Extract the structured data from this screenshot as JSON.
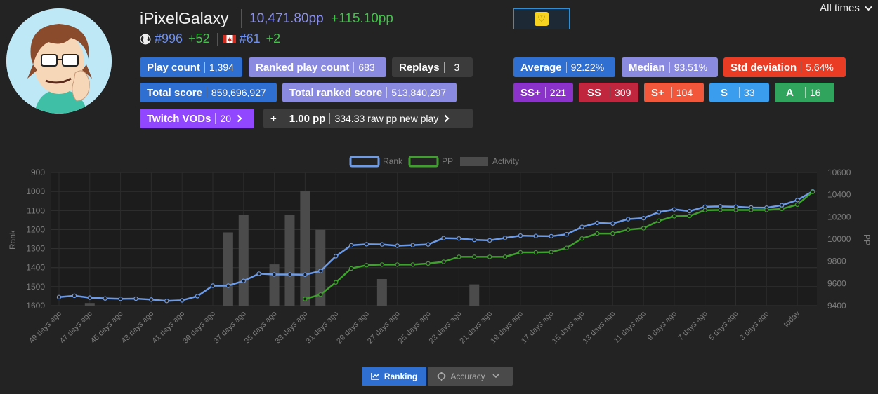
{
  "profile": {
    "username": "iPixelGalaxy",
    "pp_total": "10,471.80pp",
    "pp_gain": "+115.10pp",
    "global_rank": "#996",
    "global_delta": "+52",
    "country_rank": "#61",
    "country_delta": "+2"
  },
  "header": {
    "time_filter": "All times"
  },
  "stats": {
    "play_count": {
      "label": "Play count",
      "value": "1,394"
    },
    "ranked_play_count": {
      "label": "Ranked play count",
      "value": "683"
    },
    "replays": {
      "label": "Replays",
      "value": "3"
    },
    "total_score": {
      "label": "Total score",
      "value": "859,696,927"
    },
    "total_ranked_score": {
      "label": "Total ranked score",
      "value": "513,840,297"
    },
    "twitch_vods": {
      "label": "Twitch VODs",
      "value": "20"
    },
    "pp_calc": {
      "plus": "+",
      "pp": "1.00 pp",
      "raw": "334.33 raw pp new play"
    },
    "average": {
      "label": "Average",
      "value": "92.22%"
    },
    "median": {
      "label": "Median",
      "value": "93.51%"
    },
    "std_dev": {
      "label": "Std deviation",
      "value": "5.64%"
    },
    "grades": [
      {
        "label": "SS+",
        "value": "221"
      },
      {
        "label": "SS",
        "value": "309"
      },
      {
        "label": "S+",
        "value": "104"
      },
      {
        "label": "S",
        "value": "33"
      },
      {
        "label": "A",
        "value": "16"
      }
    ]
  },
  "colors": {
    "play": "#2f6fd1",
    "ranked": "#8a8be0",
    "dark": "#3b3b3b",
    "twitch": "#9146ff",
    "stddev": "#ea3b24",
    "ssplus": "#8a32c9",
    "ss": "#c0273f",
    "splus": "#f2573b",
    "s": "#3b9ded",
    "a": "#30a35c",
    "rank_line": "#6d9be8",
    "pp_line": "#3fa02e",
    "activity_bar": "#4b4b4b"
  },
  "chart_data": {
    "type": "line",
    "legend": [
      "Rank",
      "PP",
      "Activity"
    ],
    "ylabel_left": "Rank",
    "ylabel_right": "PP",
    "y_left_ticks": [
      "900",
      "1000",
      "1100",
      "1200",
      "1300",
      "1400",
      "1500",
      "1600"
    ],
    "y_left_range": [
      900,
      1600
    ],
    "y_right_ticks": [
      "10600",
      "10400",
      "10200",
      "10000",
      "9800",
      "9600",
      "9400"
    ],
    "y_right_range": [
      9400,
      10600
    ],
    "x_labels": [
      "49 days ago",
      "47 days ago",
      "45 days ago",
      "43 days ago",
      "41 days ago",
      "39 days ago",
      "37 days ago",
      "35 days ago",
      "33 days ago",
      "31 days ago",
      "29 days ago",
      "27 days ago",
      "25 days ago",
      "23 days ago",
      "21 days ago",
      "19 days ago",
      "17 days ago",
      "15 days ago",
      "13 days ago",
      "11 days ago",
      "9 days ago",
      "7 days ago",
      "5 days ago",
      "3 days ago",
      "today"
    ],
    "rank": [
      1555,
      1548,
      1558,
      1562,
      1564,
      1563,
      1568,
      1575,
      1572,
      1550,
      1495,
      1495,
      1470,
      1432,
      1436,
      1436,
      1437,
      1418,
      1340,
      1283,
      1277,
      1278,
      1285,
      1282,
      1278,
      1245,
      1247,
      1254,
      1257,
      1244,
      1232,
      1234,
      1235,
      1225,
      1186,
      1165,
      1168,
      1145,
      1140,
      1108,
      1094,
      1103,
      1080,
      1078,
      1080,
      1084,
      1085,
      1072,
      1045,
      1000
    ],
    "pp": [
      null,
      null,
      null,
      null,
      null,
      null,
      null,
      null,
      null,
      null,
      null,
      null,
      null,
      null,
      null,
      null,
      9460,
      9500,
      9610,
      9735,
      9765,
      9770,
      9770,
      9770,
      9780,
      9795,
      9840,
      9840,
      9840,
      9840,
      9880,
      9880,
      9882,
      9920,
      10005,
      10050,
      10050,
      10085,
      10098,
      10165,
      10205,
      10208,
      10260,
      10262,
      10262,
      10262,
      10262,
      10272,
      10310,
      10425
    ],
    "activity": [
      0,
      0,
      20,
      0,
      0,
      0,
      0,
      0,
      0,
      0,
      0,
      550,
      680,
      0,
      310,
      680,
      860,
      570,
      0,
      0,
      0,
      200,
      0,
      0,
      0,
      0,
      0,
      160,
      0,
      0,
      0,
      0,
      0,
      0,
      0,
      0,
      0,
      0,
      0,
      0,
      0,
      0,
      0,
      0,
      0,
      0,
      0,
      0,
      0,
      0
    ]
  },
  "tabs": {
    "ranking": "Ranking",
    "accuracy": "Accuracy"
  }
}
